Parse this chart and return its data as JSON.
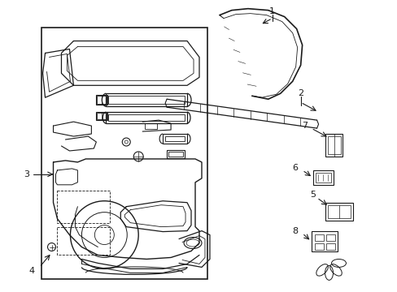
{
  "bg_color": "#ffffff",
  "line_color": "#1a1a1a",
  "fig_width": 4.89,
  "fig_height": 3.6,
  "dpi": 100,
  "lw_main": 0.9,
  "lw_thin": 0.6,
  "lw_thick": 1.2
}
